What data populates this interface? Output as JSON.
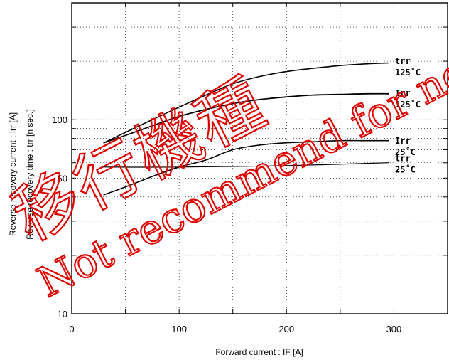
{
  "chart_data": {
    "type": "line",
    "xlabel": "Forward current  :  IF [A]",
    "ylabel_1": "Reverse recovery current  :  Irr [A]",
    "ylabel_2": "Reverse recovery time  :  trr [n sec.]",
    "xlim": [
      0,
      350
    ],
    "ylim": [
      10,
      400
    ],
    "y_scale": "log",
    "grid": true,
    "x_ticks": [
      {
        "value": 0,
        "label": "0"
      },
      {
        "value": 100,
        "label": "100"
      },
      {
        "value": 200,
        "label": "200"
      },
      {
        "value": 300,
        "label": "300"
      }
    ],
    "y_ticks": [
      {
        "value": 10,
        "label": "10"
      },
      {
        "value": 50,
        "label": "50"
      },
      {
        "value": 100,
        "label": "100"
      }
    ],
    "series": [
      {
        "label_line1": "trr",
        "label_line2": "125˚C",
        "label_at": 190,
        "x": [
          30,
          50,
          75,
          100,
          125,
          150,
          175,
          200,
          225,
          250,
          275,
          295
        ],
        "y": [
          76,
          86,
          100,
          116,
          134,
          153,
          167,
          177,
          184,
          190,
          194,
          196
        ]
      },
      {
        "label_line1": "Irr",
        "label_line2": "125˚C",
        "label_at": 130,
        "x": [
          30,
          50,
          75,
          100,
          125,
          150,
          175,
          200,
          225,
          250,
          275,
          295
        ],
        "y": [
          76,
          83,
          93,
          104,
          113,
          121,
          127,
          131,
          134,
          135,
          136,
          136
        ]
      },
      {
        "label_line1": "Irr",
        "label_line2": "25˚C",
        "label_at": 74,
        "x": [
          30,
          50,
          75,
          100,
          125,
          150,
          175,
          200,
          225,
          250,
          275,
          295
        ],
        "y": [
          41,
          45,
          51,
          57,
          62,
          70,
          74,
          76,
          77,
          78,
          78,
          78
        ]
      },
      {
        "label_line1": "trr",
        "label_line2": "25˚C",
        "label_at": 60,
        "x": [
          30,
          100,
          200,
          295
        ],
        "y": [
          57,
          57,
          58,
          60
        ]
      }
    ]
  },
  "watermark": {
    "line1": "移行機種",
    "line2": "Not recommend for new design."
  }
}
